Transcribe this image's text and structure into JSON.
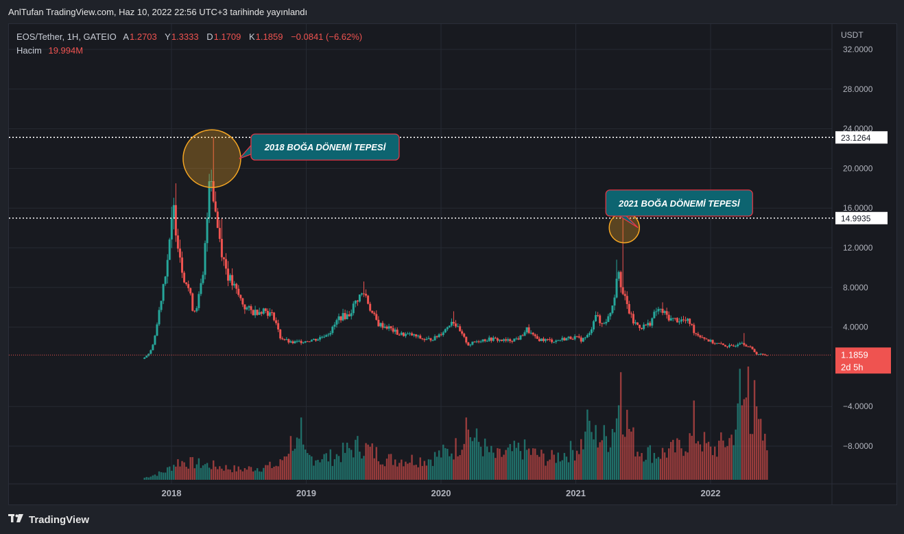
{
  "caption": "AnlTufan TradingView.com, Haz 10, 2022 22:56 UTC+3 tarihinde yayınlandı",
  "legend": {
    "symbol": "EOS/Tether, 1H, GATEIO",
    "open_label": "A",
    "open": "1.2703",
    "high_label": "Y",
    "high": "1.3333",
    "low_label": "D",
    "low": "1.1709",
    "close_label": "K",
    "close": "1.1859",
    "change": "−0.0841 (−6.62%)",
    "volume_label": "Hacim",
    "volume": "19.994M"
  },
  "footer": {
    "logo": "TradingView",
    "logo_icon": "tradingview-logo-icon"
  },
  "colors": {
    "up": "#26a69a",
    "down": "#ef5350",
    "grid": "#262a33",
    "axis_text": "#b2b5be",
    "callout_fill": "#0d6470",
    "callout_border": "#f23645",
    "highlight": "#f5a623"
  },
  "chart_data": {
    "type": "candlestick",
    "currency_label": "USDT",
    "y_ticks": [
      "32.0000",
      "28.0000",
      "24.0000",
      "20.0000",
      "16.0000",
      "12.0000",
      "8.0000",
      "4.0000",
      "−4.0000",
      "−8.0000"
    ],
    "y_tick_values": [
      32,
      28,
      24,
      20,
      16,
      12,
      8,
      4,
      -4,
      -8
    ],
    "ylim": [
      -12,
      33
    ],
    "x_ticks": [
      "2018",
      "2019",
      "2020",
      "2021",
      "2022"
    ],
    "x_tick_values": [
      2018.0,
      2019.0,
      2020.0,
      2021.0,
      2022.0
    ],
    "xlim": [
      2016.9,
      2023.1
    ],
    "price_labels": [
      {
        "text": "23.1264",
        "value": 23.1264,
        "style": "white"
      },
      {
        "text": "14.9935",
        "value": 14.9935,
        "style": "white"
      }
    ],
    "current_price": {
      "text": "1.1859",
      "value": 1.1859,
      "countdown": "2d 5h"
    },
    "annotations": [
      {
        "text": "2018 BOĞA DÖNEMİ TEPESİ",
        "x": 2018.3,
        "y": 23.13
      },
      {
        "text": "2021 BOĞA DÖNEMİ TEPESİ",
        "x": 2021.36,
        "y": 14.99
      }
    ],
    "price_path": [
      [
        2017.8,
        0.8
      ],
      [
        2017.86,
        1.5
      ],
      [
        2017.9,
        3.5
      ],
      [
        2017.95,
        8.0
      ],
      [
        2018.0,
        12.0
      ],
      [
        2018.03,
        16.0
      ],
      [
        2018.06,
        13.0
      ],
      [
        2018.1,
        9.5
      ],
      [
        2018.14,
        8.0
      ],
      [
        2018.18,
        5.5
      ],
      [
        2018.21,
        6.5
      ],
      [
        2018.25,
        9.0
      ],
      [
        2018.28,
        15.0
      ],
      [
        2018.3,
        21.0
      ],
      [
        2018.33,
        17.0
      ],
      [
        2018.36,
        14.0
      ],
      [
        2018.4,
        11.0
      ],
      [
        2018.44,
        9.0
      ],
      [
        2018.5,
        7.5
      ],
      [
        2018.56,
        6.0
      ],
      [
        2018.62,
        5.5
      ],
      [
        2018.7,
        5.8
      ],
      [
        2018.78,
        5.0
      ],
      [
        2018.82,
        3.0
      ],
      [
        2018.9,
        2.4
      ],
      [
        2019.0,
        2.6
      ],
      [
        2019.1,
        2.8
      ],
      [
        2019.2,
        3.6
      ],
      [
        2019.26,
        5.0
      ],
      [
        2019.33,
        5.2
      ],
      [
        2019.4,
        7.0
      ],
      [
        2019.45,
        7.5
      ],
      [
        2019.5,
        5.5
      ],
      [
        2019.55,
        4.3
      ],
      [
        2019.62,
        4.0
      ],
      [
        2019.7,
        3.3
      ],
      [
        2019.8,
        3.2
      ],
      [
        2019.9,
        2.7
      ],
      [
        2019.97,
        2.9
      ],
      [
        2020.05,
        3.8
      ],
      [
        2020.1,
        4.8
      ],
      [
        2020.15,
        3.6
      ],
      [
        2020.22,
        2.2
      ],
      [
        2020.3,
        2.7
      ],
      [
        2020.4,
        2.8
      ],
      [
        2020.5,
        2.6
      ],
      [
        2020.6,
        2.9
      ],
      [
        2020.65,
        3.8
      ],
      [
        2020.72,
        2.8
      ],
      [
        2020.8,
        2.7
      ],
      [
        2020.86,
        2.6
      ],
      [
        2020.92,
        2.8
      ],
      [
        2021.0,
        3.0
      ],
      [
        2021.06,
        2.7
      ],
      [
        2021.12,
        3.3
      ],
      [
        2021.16,
        5.5
      ],
      [
        2021.2,
        4.2
      ],
      [
        2021.26,
        5.0
      ],
      [
        2021.3,
        7.0
      ],
      [
        2021.33,
        10.5
      ],
      [
        2021.36,
        7.5
      ],
      [
        2021.4,
        6.0
      ],
      [
        2021.44,
        4.5
      ],
      [
        2021.5,
        4.0
      ],
      [
        2021.56,
        4.3
      ],
      [
        2021.62,
        5.8
      ],
      [
        2021.66,
        5.5
      ],
      [
        2021.72,
        4.8
      ],
      [
        2021.8,
        4.7
      ],
      [
        2021.86,
        4.5
      ],
      [
        2021.9,
        3.4
      ],
      [
        2021.96,
        3.0
      ],
      [
        2022.02,
        2.5
      ],
      [
        2022.1,
        2.2
      ],
      [
        2022.18,
        2.0
      ],
      [
        2022.24,
        2.6
      ],
      [
        2022.28,
        2.2
      ],
      [
        2022.32,
        1.8
      ],
      [
        2022.36,
        1.3
      ],
      [
        2022.42,
        1.19
      ]
    ],
    "spikes": [
      [
        2018.04,
        18.5
      ],
      [
        2018.31,
        23.13
      ],
      [
        2018.37,
        15.0
      ],
      [
        2019.42,
        8.6
      ],
      [
        2020.09,
        5.6
      ],
      [
        2021.31,
        10.8
      ],
      [
        2021.355,
        14.99
      ],
      [
        2021.64,
        6.5
      ],
      [
        2022.25,
        3.4
      ]
    ],
    "volume_path": [
      [
        2017.8,
        0.02
      ],
      [
        2017.95,
        0.08
      ],
      [
        2018.05,
        0.18
      ],
      [
        2018.3,
        0.14
      ],
      [
        2018.5,
        0.1
      ],
      [
        2018.8,
        0.14
      ],
      [
        2018.9,
        0.4
      ],
      [
        2019.0,
        0.22
      ],
      [
        2019.2,
        0.22
      ],
      [
        2019.4,
        0.34
      ],
      [
        2019.6,
        0.2
      ],
      [
        2019.9,
        0.2
      ],
      [
        2020.1,
        0.3
      ],
      [
        2020.2,
        0.46
      ],
      [
        2020.4,
        0.22
      ],
      [
        2020.6,
        0.3
      ],
      [
        2020.8,
        0.2
      ],
      [
        2021.0,
        0.3
      ],
      [
        2021.1,
        0.44
      ],
      [
        2021.25,
        0.4
      ],
      [
        2021.33,
        0.78
      ],
      [
        2021.45,
        0.3
      ],
      [
        2021.6,
        0.25
      ],
      [
        2021.75,
        0.3
      ],
      [
        2021.9,
        0.44
      ],
      [
        2022.0,
        0.28
      ],
      [
        2022.15,
        0.4
      ],
      [
        2022.25,
        0.78
      ],
      [
        2022.35,
        0.52
      ],
      [
        2022.42,
        0.3
      ]
    ],
    "volume_spikes": [
      [
        2018.96,
        0.55
      ],
      [
        2020.18,
        0.55
      ],
      [
        2021.08,
        0.62
      ],
      [
        2021.34,
        0.95
      ],
      [
        2021.88,
        0.7
      ],
      [
        2022.22,
        0.98
      ],
      [
        2022.28,
        1.0
      ],
      [
        2022.33,
        0.88
      ]
    ]
  }
}
